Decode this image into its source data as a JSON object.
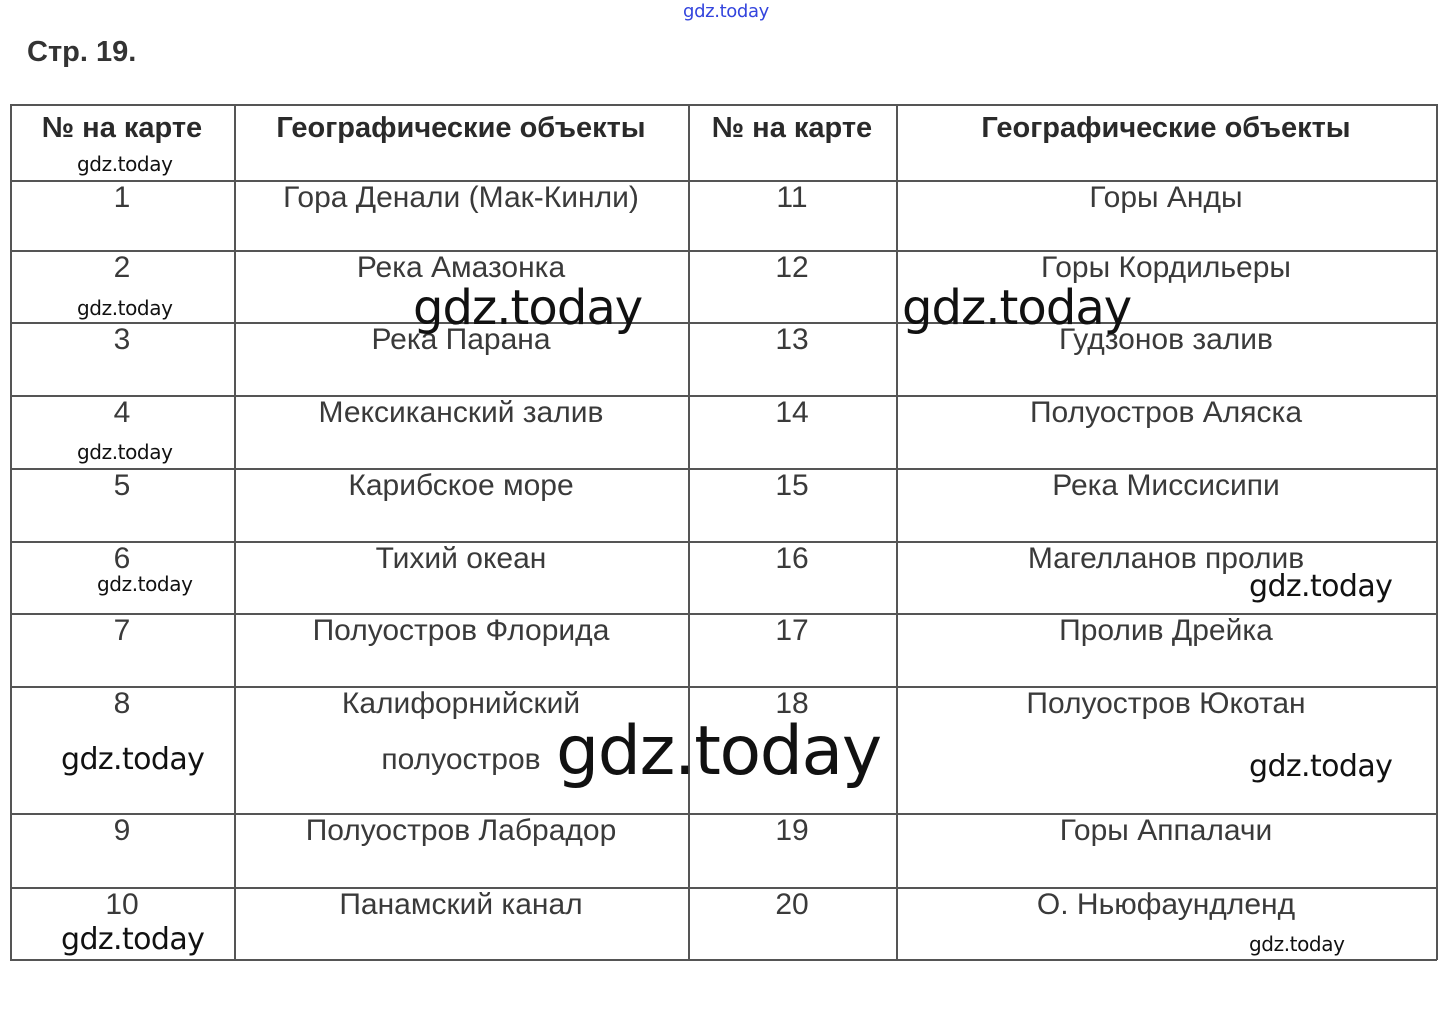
{
  "page_title": "Стр. 19.",
  "table": {
    "headers": [
      "№ на карте",
      "Географические объекты",
      "№ на карте",
      "Географические объекты"
    ],
    "rows": [
      {
        "n1": "1",
        "obj1": "Гора Денали (Мак-Кинли)",
        "n2": "11",
        "obj2": "Горы Анды"
      },
      {
        "n1": "2",
        "obj1": "Река Амазонка",
        "n2": "12",
        "obj2": "Горы Кордильеры"
      },
      {
        "n1": "3",
        "obj1": "Река Парана",
        "n2": "13",
        "obj2": "Гудзонов залив"
      },
      {
        "n1": "4",
        "obj1": "Мексиканский залив",
        "n2": "14",
        "obj2": "Полуостров Аляска"
      },
      {
        "n1": "5",
        "obj1": "Карибское море",
        "n2": "15",
        "obj2": "Река Миссисипи"
      },
      {
        "n1": "6",
        "obj1": "Тихий океан",
        "n2": "16",
        "obj2": "Магелланов пролив"
      },
      {
        "n1": "7",
        "obj1": "Полуостров Флорида",
        "n2": "17",
        "obj2": "Пролив Дрейка"
      },
      {
        "n1": "8",
        "obj1": "Калифорнийский\nполуостров",
        "n2": "18",
        "obj2": "Полуостров Юкотан"
      },
      {
        "n1": "9",
        "obj1": "Полуостров Лабрадор",
        "n2": "19",
        "obj2": "Горы Аппалачи"
      },
      {
        "n1": "10",
        "obj1": "Панамский канал",
        "n2": "20",
        "obj2": "О. Ньюфаундленд"
      }
    ]
  },
  "watermark": {
    "text": "gdz.today",
    "colors": {
      "top": "#3344dd",
      "default": "#111111"
    }
  }
}
